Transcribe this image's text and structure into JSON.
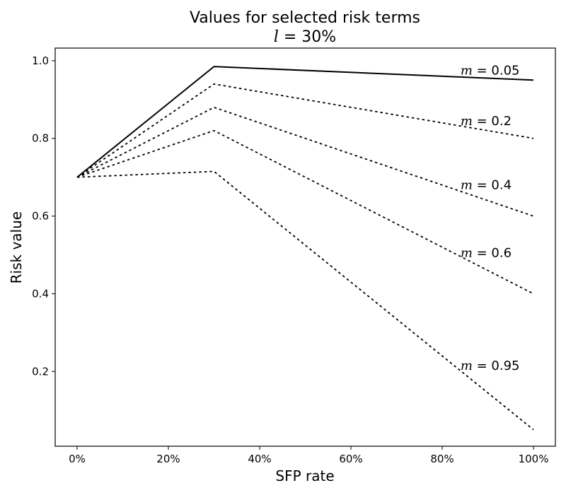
{
  "chart_data": {
    "type": "line",
    "title": "Values for selected risk terms",
    "subtitle": {
      "variable": "l",
      "value_text": "30%"
    },
    "xlabel": "SFP rate",
    "ylabel": "Risk value",
    "x": [
      0,
      30,
      100
    ],
    "xlim": [
      -4.8,
      104.8
    ],
    "ylim": [
      0.0075,
      1.0325
    ],
    "xticks": [
      0,
      20,
      40,
      60,
      80,
      100
    ],
    "xtick_labels": [
      "0%",
      "20%",
      "40%",
      "60%",
      "80%",
      "100%"
    ],
    "yticks": [
      0.2,
      0.4,
      0.6,
      0.8,
      1.0
    ],
    "ytick_labels": [
      "0.2",
      "0.4",
      "0.6",
      "0.8",
      "1.0"
    ],
    "grid": false,
    "legend": "none",
    "series": [
      {
        "name": "m = 0.05",
        "label_variable": "m",
        "label_value": "0.05",
        "values": [
          0.7,
          0.985,
          0.95
        ],
        "style": "solid",
        "label_at": [
          84,
          0.975
        ]
      },
      {
        "name": "m = 0.2",
        "label_variable": "m",
        "label_value": "0.2",
        "values": [
          0.7,
          0.94,
          0.8
        ],
        "style": "dotted",
        "label_at": [
          84,
          0.845
        ]
      },
      {
        "name": "m = 0.4",
        "label_variable": "m",
        "label_value": "0.4",
        "values": [
          0.7,
          0.88,
          0.6
        ],
        "style": "dotted",
        "label_at": [
          84,
          0.68
        ]
      },
      {
        "name": "m = 0.6",
        "label_variable": "m",
        "label_value": "0.6",
        "values": [
          0.7,
          0.82,
          0.4
        ],
        "style": "dotted",
        "label_at": [
          84,
          0.505
        ]
      },
      {
        "name": "m = 0.95",
        "label_variable": "m",
        "label_value": "0.95",
        "values": [
          0.7,
          0.715,
          0.05
        ],
        "style": "dotted",
        "label_at": [
          84,
          0.215
        ]
      }
    ],
    "colors": {
      "line": "#000000",
      "axes": "#000000",
      "background": "#ffffff"
    }
  }
}
